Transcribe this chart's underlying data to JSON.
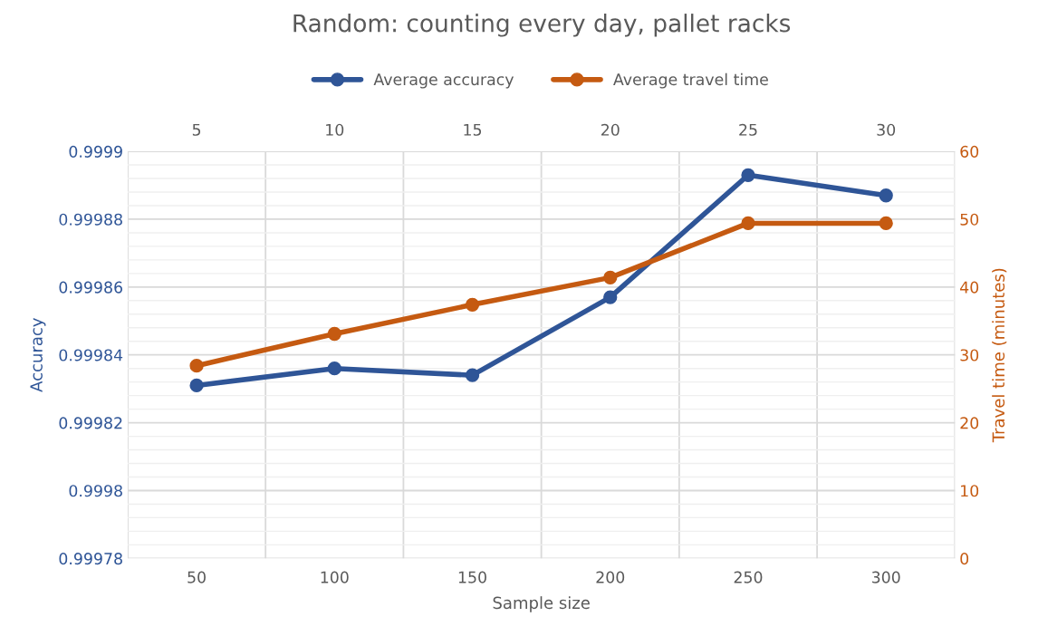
{
  "chart_data": {
    "type": "line",
    "title": "Random: counting every day, pallet racks",
    "xlabel": "Sample size",
    "ylabel": "Accuracy",
    "y2label": "Travel time (minutes)",
    "categories": [
      "50",
      "100",
      "150",
      "200",
      "250",
      "300"
    ],
    "series": [
      {
        "name": "Average accuracy",
        "color": "#2f5597",
        "values": [
          0.999831,
          0.999836,
          0.999834,
          0.999857,
          0.999893,
          0.999887
        ]
      },
      {
        "name": "Average travel time",
        "color": "#c55a11",
        "axis": "y2",
        "values": [
          28.4,
          33.1,
          37.4,
          41.4,
          49.4,
          49.4
        ]
      }
    ],
    "ylim": [
      0.99978,
      0.9999
    ],
    "yticks": [
      0.99978,
      0.9998,
      0.99982,
      0.99984,
      0.99986,
      0.99988,
      0.9999
    ],
    "y2lim": [
      0,
      60
    ],
    "y2ticks": [
      0,
      10,
      20,
      30,
      40,
      50,
      60
    ],
    "x2lim": [
      2.5,
      32.5
    ],
    "x2ticks": [
      5,
      10,
      15,
      20,
      25,
      30
    ],
    "grid": true,
    "legend": "top",
    "marker": "circle",
    "line_style": "solid"
  }
}
